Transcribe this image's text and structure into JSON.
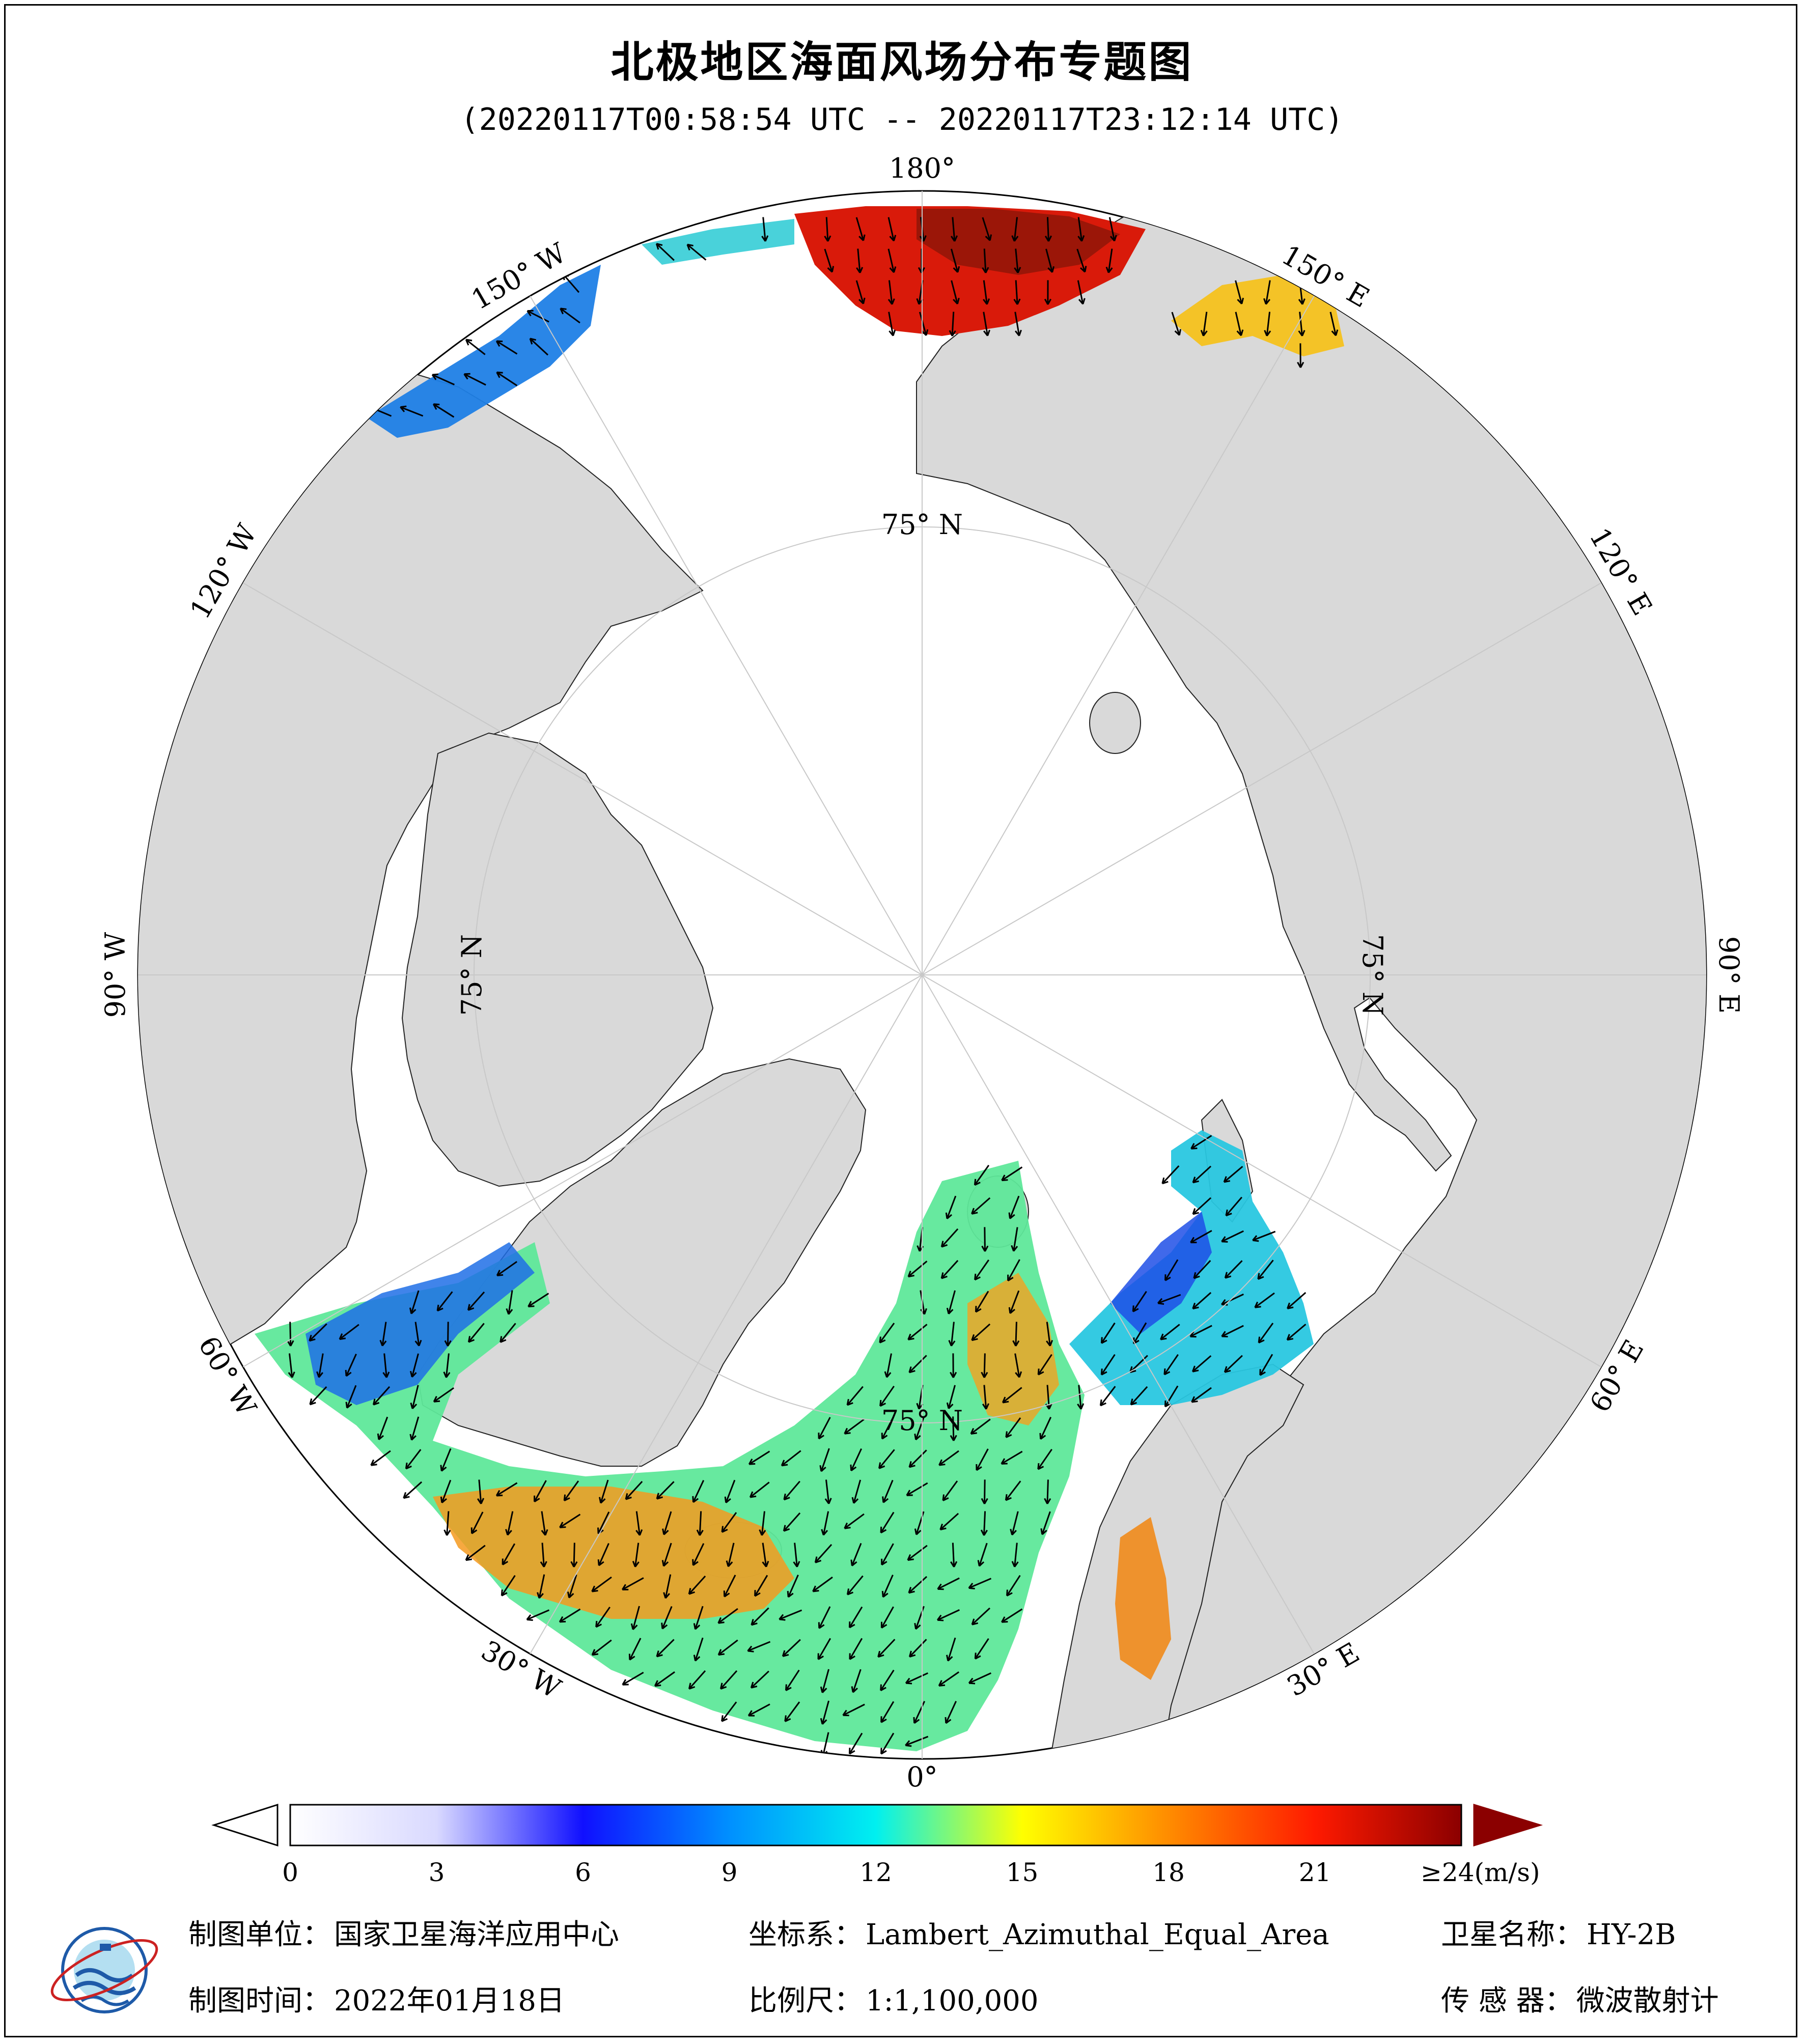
{
  "title": "北极地区海面风场分布专题图",
  "subtitle": "(20220117T00:58:54 UTC -- 20220117T23:12:14 UTC)",
  "map": {
    "projection": "Lambert Azimuthal Equal Area, north polar",
    "longitude_labels": [
      "180°",
      "150° E",
      "120° E",
      "90° E",
      "60° E",
      "30° E",
      "0°",
      "30° W",
      "60° W",
      "90° W",
      "120° W",
      "150° W"
    ],
    "latitude_labels": [
      "75° N",
      "75° N",
      "75° N",
      "75° N"
    ],
    "colors": {
      "land": "#d9d9d9",
      "ocean_ice": "#ffffff",
      "graticule": "#c8c8c8",
      "arrow": "#000000"
    }
  },
  "colorbar": {
    "tick_labels": [
      "0",
      "3",
      "6",
      "9",
      "12",
      "15",
      "18",
      "21",
      "≥24(m/s)"
    ],
    "tick_values": [
      0,
      3,
      6,
      9,
      12,
      15,
      18,
      21,
      24
    ],
    "range": [
      0,
      24
    ],
    "unit": "m/s",
    "colors": [
      "#ffffff",
      "#d9d9ff",
      "#1010ff",
      "#0090ff",
      "#00f0f0",
      "#ffff00",
      "#ff8c00",
      "#ff1a00",
      "#8b0000"
    ]
  },
  "footer": {
    "unit_label": "制图单位：",
    "unit_value": "国家卫星海洋应用中心",
    "coord_label": "坐标系：",
    "coord_value": "Lambert_Azimuthal_Equal_Area",
    "satellite_label": "卫星名称：",
    "satellite_value": "HY-2B",
    "date_label": "制图时间：",
    "date_value": "2022年01月18日",
    "scale_label": "比例尺：",
    "scale_value": "1:1,100,000",
    "sensor_label": "传  感  器：",
    "sensor_value": "微波散射计"
  },
  "logo": {
    "name": "national-satellite-ocean-application-service-logo",
    "colors": [
      "#1e5aa8",
      "#cc2222",
      "#29a3d6"
    ]
  }
}
